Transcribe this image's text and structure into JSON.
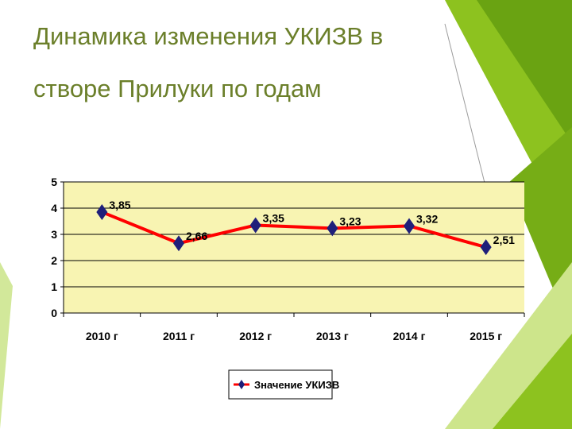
{
  "slide": {
    "title_line1": "Динамика изменения УКИЗВ в",
    "title_line2": "створе Прилуки по годам"
  },
  "colors": {
    "title": "#6b7f2a",
    "plot_bg": "#f8f4b2",
    "series_line": "#ff0000",
    "marker": "#1f1f7a",
    "accent_green": "#8dc21f"
  },
  "chart_data": {
    "type": "line",
    "title": "",
    "xlabel": "",
    "ylabel": "",
    "categories": [
      "2010 г",
      "2011 г",
      "2012 г",
      "2013 г",
      "2014 г",
      "2015 г"
    ],
    "series": [
      {
        "name": "Значение УКИЗВ",
        "values": [
          3.85,
          2.66,
          3.35,
          3.23,
          3.32,
          2.51
        ],
        "labels": [
          "3,85",
          "2,66",
          "3,35",
          "3,23",
          "3,32",
          "2,51"
        ]
      }
    ],
    "ylim": [
      0,
      5
    ],
    "yticks": [
      "0",
      "1",
      "2",
      "3",
      "4",
      "5"
    ],
    "grid": true,
    "legend": "bottom"
  }
}
